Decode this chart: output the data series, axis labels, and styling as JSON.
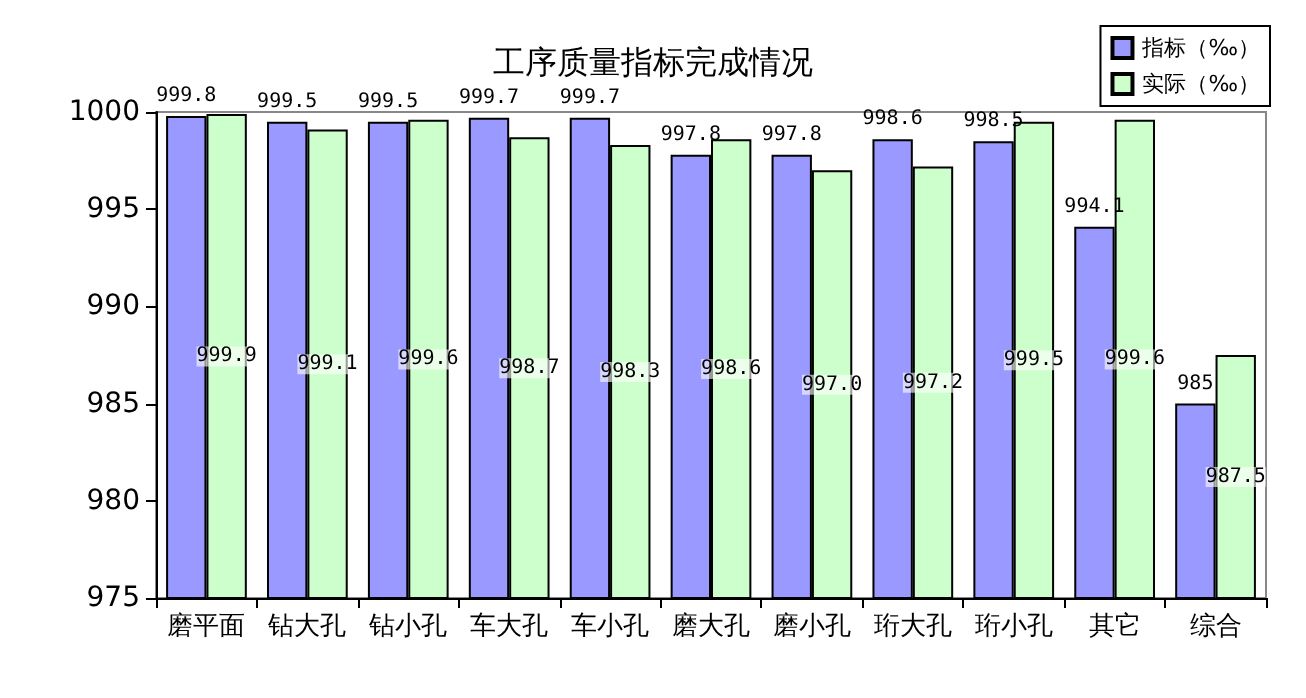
{
  "chart_data": {
    "type": "bar",
    "title": "工序质量指标完成情况",
    "categories": [
      "磨平面",
      "钻大孔",
      "钻小孔",
      "车大孔",
      "车小孔",
      "磨大孔",
      "磨小孔",
      "珩大孔",
      "珩小孔",
      "其它",
      "综合"
    ],
    "series": [
      {
        "name": "指标（‰）",
        "color": "#9999ff",
        "values": [
          999.8,
          999.5,
          999.5,
          999.7,
          999.7,
          997.8,
          997.8,
          998.6,
          998.5,
          994.1,
          985
        ],
        "value_labels": [
          "999.8",
          "999.5",
          "999.5",
          "999.7",
          "999.7",
          "997.8",
          "997.8",
          "998.6",
          "998.5",
          "994.1",
          "985"
        ]
      },
      {
        "name": "实际（‰）",
        "color": "#ccffcc",
        "values": [
          999.9,
          999.1,
          999.6,
          998.7,
          998.3,
          998.6,
          997.0,
          997.2,
          999.5,
          999.6,
          987.5
        ],
        "value_labels": [
          "999.9",
          "999.1",
          "999.6",
          "998.7",
          "998.3",
          "998.6",
          "997.0",
          "997.2",
          "999.5",
          "999.6",
          "987.5"
        ]
      }
    ],
    "ylim": [
      975,
      1000
    ],
    "yticks": [
      975,
      980,
      985,
      990,
      995,
      {
        "value": 1000,
        "label": "1000"
      }
    ],
    "grid": false,
    "legend": "top right"
  }
}
